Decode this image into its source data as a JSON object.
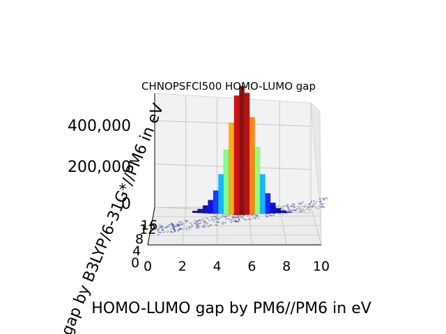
{
  "chart_data": {
    "type": "3d-bar-histogram",
    "title": "CHNOPSFCl500 HOMO-LUMO gap",
    "xlabel": "HOMO-LUMO gap by PM6//PM6 in eV",
    "ylabel": "gap by B3LYP/6-31G*//PM6 in eV",
    "zlabel": "",
    "xlim": [
      0,
      10
    ],
    "ylim": [
      0,
      12
    ],
    "zlim": [
      0,
      500000
    ],
    "x_ticks": [
      "0",
      "2",
      "4",
      "6",
      "8",
      "10"
    ],
    "y_ticks": [
      "0",
      "4",
      "8",
      "12",
      "16"
    ],
    "z_ticks": [
      "0",
      "200,000",
      "400,000"
    ],
    "colormap": "jet",
    "x_bin_centers": [
      2.4,
      2.7,
      3.0,
      3.3,
      3.6,
      3.9,
      4.2,
      4.5,
      4.8,
      5.1,
      5.4,
      5.7,
      6.0,
      6.3,
      6.6,
      6.9,
      7.2,
      7.5,
      7.8
    ],
    "peak_counts": [
      5000,
      12000,
      25000,
      45000,
      80000,
      140000,
      230000,
      330000,
      430000,
      465000,
      440000,
      350000,
      240000,
      140000,
      70000,
      35000,
      15000,
      6000,
      2000
    ],
    "grid": true
  }
}
